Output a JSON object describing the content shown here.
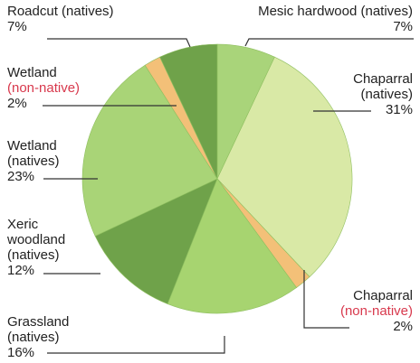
{
  "chart_data": {
    "type": "pie",
    "unit": "%",
    "slices": [
      {
        "name": "Mesic hardwood (natives)",
        "value": 7,
        "color": "#a9d47a"
      },
      {
        "name": "Chaparral (natives)",
        "value": 31,
        "color": "#d9e9a6"
      },
      {
        "name": "Chaparral (non-native)",
        "value": 2,
        "color": "#f3c078"
      },
      {
        "name": "Grassland (natives)",
        "value": 16,
        "color": "#a7d470"
      },
      {
        "name": "Xeric woodland (natives)",
        "value": 12,
        "color": "#6fa24a"
      },
      {
        "name": "Wetland (natives)",
        "value": 23,
        "color": "#a9d477"
      },
      {
        "name": "Wetland (non-native)",
        "value": 2,
        "color": "#f3c078"
      },
      {
        "name": "Roadcut (natives)",
        "value": 7,
        "color": "#6fa24a"
      }
    ]
  },
  "labels": {
    "mesic": {
      "line1": "Mesic hardwood (natives)",
      "pct": "7%"
    },
    "chap_nat": {
      "line1": "Chaparral",
      "line2": "(natives)",
      "pct": "31%"
    },
    "chap_non": {
      "line1": "Chaparral",
      "line2": "(non-native)",
      "pct": "2%"
    },
    "grass": {
      "line1": "Grassland",
      "line2": "(natives)",
      "pct": "16%"
    },
    "xeric": {
      "line1": "Xeric",
      "line2": "woodland",
      "line3": "(natives)",
      "pct": "12%"
    },
    "wet_nat": {
      "line1": "Wetland",
      "line2": "(natives)",
      "pct": "23%"
    },
    "wet_non": {
      "line1": "Wetland",
      "line2": "(non-native)",
      "pct": "2%"
    },
    "roadcut": {
      "line1": "Roadcut (natives)",
      "pct": "7%"
    }
  },
  "colors": {
    "leader": "#333333",
    "non_native_text": "#d8394d"
  }
}
